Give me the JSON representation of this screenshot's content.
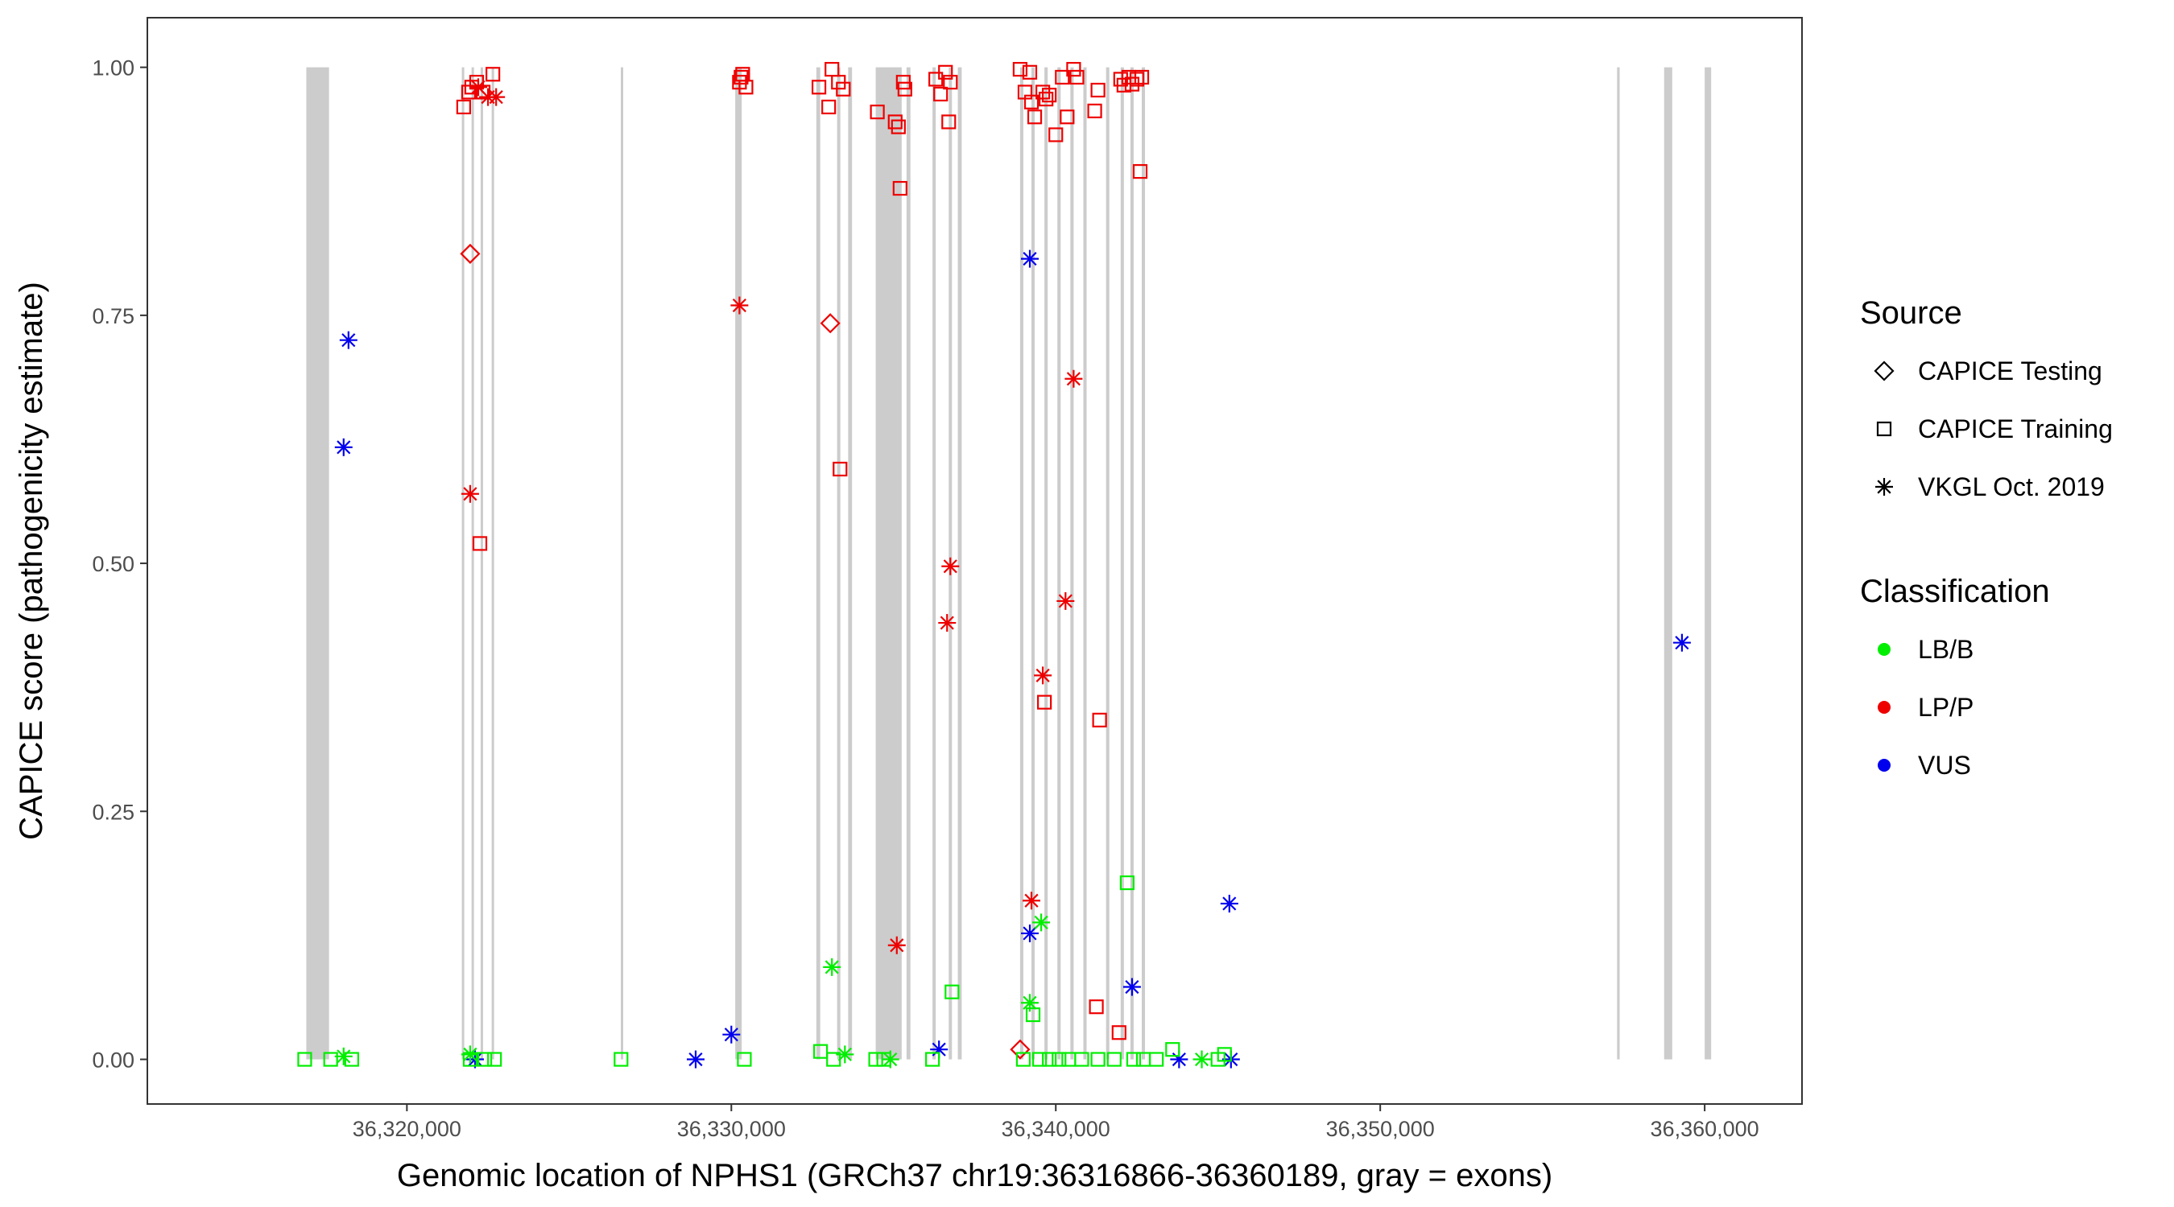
{
  "chart_data": {
    "type": "scatter",
    "title": "",
    "xlabel": "Genomic location of NPHS1 (GRCh37 chr19:36316866-36360189, gray = exons)",
    "ylabel": "CAPICE score (pathogenicity estimate)",
    "xlim": [
      36312000,
      36363000
    ],
    "ylim": [
      -0.045,
      1.05
    ],
    "x_ticks": [
      36320000,
      36330000,
      36340000,
      36350000,
      36360000
    ],
    "x_tick_labels": [
      "36,320,000",
      "36,330,000",
      "36,340,000",
      "36,350,000",
      "36,360,000"
    ],
    "y_ticks": [
      0,
      0.25,
      0.5,
      0.75,
      1.0
    ],
    "y_tick_labels": [
      "0.00",
      "0.25",
      "0.50",
      "0.75",
      "1.00"
    ],
    "grid": false,
    "exon_color": "#cccccc",
    "exons": [
      [
        36316900,
        36317600
      ],
      [
        36321700,
        36321760
      ],
      [
        36322000,
        36322060
      ],
      [
        36322280,
        36322340
      ],
      [
        36322620,
        36322680
      ],
      [
        36326600,
        36326660
      ],
      [
        36330120,
        36330320
      ],
      [
        36332620,
        36332740
      ],
      [
        36333260,
        36333360
      ],
      [
        36333600,
        36333720
      ],
      [
        36334450,
        36335250
      ],
      [
        36335400,
        36335520
      ],
      [
        36336200,
        36336300
      ],
      [
        36336700,
        36336800
      ],
      [
        36336980,
        36337100
      ],
      [
        36338900,
        36339000
      ],
      [
        36339250,
        36339350
      ],
      [
        36339650,
        36339750
      ],
      [
        36340050,
        36340150
      ],
      [
        36340450,
        36340550
      ],
      [
        36340850,
        36340950
      ],
      [
        36341550,
        36341650
      ],
      [
        36342000,
        36342100
      ],
      [
        36342300,
        36342400
      ],
      [
        36342650,
        36342750
      ],
      [
        36357300,
        36357380
      ],
      [
        36358750,
        36359000
      ],
      [
        36360000,
        36360200
      ]
    ],
    "legend": [
      {
        "title": "Source",
        "entries": [
          {
            "label": "CAPICE Testing",
            "shape": "diamond"
          },
          {
            "label": "CAPICE Training",
            "shape": "square"
          },
          {
            "label": "VKGL Oct. 2019",
            "shape": "asterisk"
          }
        ]
      },
      {
        "title": "Classification",
        "entries": [
          {
            "label": "LB/B",
            "color": "#00ee00"
          },
          {
            "label": "LP/P",
            "color": "#ee0000"
          },
          {
            "label": "VUS",
            "color": "#0000ee"
          }
        ]
      }
    ],
    "legend_position": "right",
    "series": [
      {
        "source": "CAPICE Training",
        "classification": "LP/P",
        "points": [
          [
            36321750,
            0.96
          ],
          [
            36321900,
            0.975
          ],
          [
            36322000,
            0.98
          ],
          [
            36322150,
            0.985
          ],
          [
            36322350,
            0.975
          ],
          [
            36322650,
            0.993
          ],
          [
            36322250,
            0.52
          ],
          [
            36330250,
            0.985
          ],
          [
            36330300,
            0.99
          ],
          [
            36330350,
            0.993
          ],
          [
            36330450,
            0.98
          ],
          [
            36332700,
            0.98
          ],
          [
            36333000,
            0.96
          ],
          [
            36333100,
            0.998
          ],
          [
            36333300,
            0.985
          ],
          [
            36333450,
            0.978
          ],
          [
            36333350,
            0.595
          ],
          [
            36334500,
            0.955
          ],
          [
            36335050,
            0.945
          ],
          [
            36335150,
            0.94
          ],
          [
            36335300,
            0.985
          ],
          [
            36335350,
            0.978
          ],
          [
            36335200,
            0.878
          ],
          [
            36336300,
            0.988
          ],
          [
            36336450,
            0.973
          ],
          [
            36336600,
            0.995
          ],
          [
            36336750,
            0.985
          ],
          [
            36336700,
            0.945
          ],
          [
            36338900,
            0.998
          ],
          [
            36339050,
            0.975
          ],
          [
            36339200,
            0.995
          ],
          [
            36339250,
            0.965
          ],
          [
            36339350,
            0.95
          ],
          [
            36339600,
            0.975
          ],
          [
            36339700,
            0.968
          ],
          [
            36339800,
            0.972
          ],
          [
            36340000,
            0.932
          ],
          [
            36340200,
            0.99
          ],
          [
            36340350,
            0.95
          ],
          [
            36340550,
            0.998
          ],
          [
            36340650,
            0.99
          ],
          [
            36341200,
            0.956
          ],
          [
            36341300,
            0.977
          ],
          [
            36342000,
            0.988
          ],
          [
            36342100,
            0.982
          ],
          [
            36342250,
            0.99
          ],
          [
            36342350,
            0.983
          ],
          [
            36342500,
            0.988
          ],
          [
            36342650,
            0.99
          ],
          [
            36342600,
            0.895
          ],
          [
            36339650,
            0.36
          ],
          [
            36341350,
            0.342
          ],
          [
            36341250,
            0.053
          ],
          [
            36341950,
            0.027
          ]
        ]
      },
      {
        "source": "CAPICE Testing",
        "classification": "LP/P",
        "points": [
          [
            36321950,
            0.812
          ],
          [
            36333050,
            0.742
          ],
          [
            36338900,
            0.01
          ]
        ]
      },
      {
        "source": "VKGL Oct. 2019",
        "classification": "LP/P",
        "points": [
          [
            36322200,
            0.98
          ],
          [
            36322500,
            0.97
          ],
          [
            36322750,
            0.97
          ],
          [
            36321950,
            0.57
          ],
          [
            36330250,
            0.76
          ],
          [
            36335100,
            0.115
          ],
          [
            36336750,
            0.497
          ],
          [
            36336650,
            0.44
          ],
          [
            36339250,
            0.16
          ],
          [
            36339600,
            0.387
          ],
          [
            36340300,
            0.462
          ],
          [
            36340550,
            0.686
          ]
        ]
      },
      {
        "source": "VKGL Oct. 2019",
        "classification": "VUS",
        "points": [
          [
            36318200,
            0.725
          ],
          [
            36318050,
            0.617
          ],
          [
            36322100,
            0.0
          ],
          [
            36328900,
            0.0
          ],
          [
            36330000,
            0.025
          ],
          [
            36336400,
            0.01
          ],
          [
            36339200,
            0.807
          ],
          [
            36339200,
            0.127
          ],
          [
            36342350,
            0.073
          ],
          [
            36343800,
            0.0
          ],
          [
            36345350,
            0.157
          ],
          [
            36345400,
            0.0
          ],
          [
            36359300,
            0.42
          ]
        ]
      },
      {
        "source": "VKGL Oct. 2019",
        "classification": "LB/B",
        "points": [
          [
            36318050,
            0.003
          ],
          [
            36321950,
            0.005
          ],
          [
            36333100,
            0.093
          ],
          [
            36333500,
            0.005
          ],
          [
            36334900,
            0.0
          ],
          [
            36339550,
            0.138
          ],
          [
            36339200,
            0.057
          ],
          [
            36344500,
            0.0
          ]
        ]
      },
      {
        "source": "CAPICE Training",
        "classification": "LB/B",
        "points": [
          [
            36316850,
            0.0
          ],
          [
            36317650,
            0.0
          ],
          [
            36318300,
            0.0
          ],
          [
            36321950,
            0.0
          ],
          [
            36322400,
            0.0
          ],
          [
            36322700,
            0.0
          ],
          [
            36326600,
            0.0
          ],
          [
            36330400,
            0.0
          ],
          [
            36332750,
            0.008
          ],
          [
            36333150,
            0.0
          ],
          [
            36334450,
            0.0
          ],
          [
            36334700,
            0.0
          ],
          [
            36336200,
            0.0
          ],
          [
            36336800,
            0.068
          ],
          [
            36339000,
            0.0
          ],
          [
            36339300,
            0.045
          ],
          [
            36339500,
            0.0
          ],
          [
            36339800,
            0.0
          ],
          [
            36340100,
            0.0
          ],
          [
            36340400,
            0.0
          ],
          [
            36340800,
            0.0
          ],
          [
            36341300,
            0.0
          ],
          [
            36341800,
            0.0
          ],
          [
            36342200,
            0.178
          ],
          [
            36342400,
            0.0
          ],
          [
            36342700,
            0.0
          ],
          [
            36343100,
            0.0
          ],
          [
            36343600,
            0.01
          ],
          [
            36345200,
            0.005
          ],
          [
            36345000,
            0.0
          ]
        ]
      }
    ]
  }
}
